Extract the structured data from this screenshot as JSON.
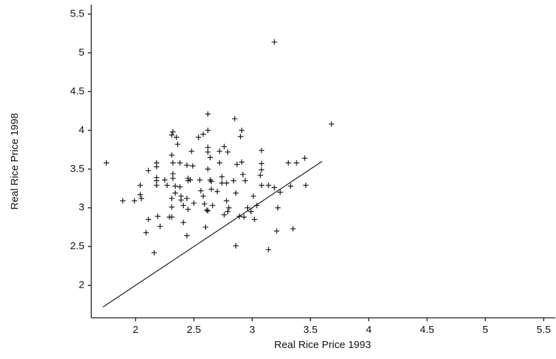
{
  "chart_data": {
    "type": "scatter",
    "marker": "plus",
    "color": "#111111",
    "xlabel": "Real Rice Price 1993",
    "ylabel": "Real Rice Price 1998",
    "xlim": [
      1.62,
      5.6
    ],
    "ylim": [
      1.58,
      5.62
    ],
    "xticks": [
      2,
      2.5,
      3,
      3.5,
      4,
      4.5,
      5,
      5.5
    ],
    "yticks": [
      2,
      2.5,
      3,
      3.5,
      4,
      4.5,
      5,
      5.5
    ],
    "reference_line": {
      "x": [
        1.72,
        3.6
      ],
      "y": [
        1.72,
        3.6
      ]
    },
    "x": [
      1.75,
      1.89,
      1.99,
      2.04,
      2.04,
      2.05,
      2.11,
      2.11,
      2.09,
      2.16,
      2.18,
      2.18,
      2.18,
      2.18,
      2.18,
      2.19,
      2.21,
      2.25,
      2.27,
      2.29,
      2.32,
      2.31,
      2.35,
      2.36,
      2.31,
      2.32,
      2.32,
      2.32,
      2.34,
      2.34,
      2.31,
      2.31,
      2.31,
      2.38,
      2.38,
      2.39,
      2.39,
      2.41,
      2.41,
      2.44,
      2.45,
      2.44,
      2.45,
      2.44,
      2.45,
      2.48,
      2.49,
      2.47,
      2.5,
      2.54,
      2.58,
      2.55,
      2.56,
      2.58,
      2.59,
      2.61,
      2.6,
      2.62,
      2.62,
      2.62,
      2.62,
      2.64,
      2.62,
      2.64,
      2.65,
      2.65,
      2.66,
      2.62,
      2.7,
      2.72,
      2.72,
      2.74,
      2.74,
      2.76,
      2.79,
      2.78,
      2.78,
      2.8,
      2.79,
      2.76,
      2.84,
      2.85,
      2.86,
      2.87,
      2.89,
      2.86,
      2.91,
      2.9,
      2.91,
      2.92,
      2.94,
      2.93,
      2.96,
      2.99,
      3.01,
      3.04,
      3.02,
      3.08,
      3.08,
      3.08,
      3.07,
      3.08,
      3.14,
      3.14,
      3.19,
      3.19,
      3.21,
      3.22,
      3.24,
      3.31,
      3.33,
      3.35,
      3.38,
      3.45,
      3.46,
      3.68
    ],
    "values": [
      3.58,
      3.09,
      3.09,
      3.29,
      3.17,
      3.12,
      3.48,
      2.85,
      2.68,
      2.42,
      3.58,
      3.53,
      3.39,
      3.35,
      3.29,
      2.89,
      2.76,
      3.36,
      3.29,
      2.88,
      3.98,
      3.94,
      3.91,
      3.82,
      3.68,
      3.58,
      3.44,
      3.38,
      3.28,
      3.19,
      3.12,
      3.01,
      2.88,
      3.58,
      3.27,
      3.15,
      3.1,
      3.03,
      2.81,
      3.55,
      3.35,
      3.12,
      2.98,
      2.64,
      3.38,
      3.73,
      3.54,
      3.36,
      3.06,
      3.91,
      3.95,
      3.36,
      3.22,
      3.15,
      3.05,
      2.97,
      2.75,
      4.21,
      4.0,
      3.78,
      3.72,
      3.65,
      3.5,
      3.36,
      3.34,
      3.24,
      3.03,
      2.96,
      3.21,
      3.58,
      3.73,
      3.4,
      3.32,
      3.79,
      3.72,
      3.32,
      3.09,
      3.0,
      2.95,
      2.91,
      3.35,
      4.15,
      3.19,
      3.56,
      2.89,
      2.51,
      4.0,
      3.92,
      3.59,
      3.43,
      3.35,
      2.88,
      3.0,
      2.95,
      3.15,
      3.03,
      2.85,
      3.74,
      3.57,
      3.49,
      3.42,
      3.29,
      3.29,
      2.46,
      3.26,
      5.14,
      2.7,
      3.0,
      3.2,
      3.58,
      3.28,
      2.73,
      3.58,
      3.64,
      3.29,
      4.08
    ]
  }
}
